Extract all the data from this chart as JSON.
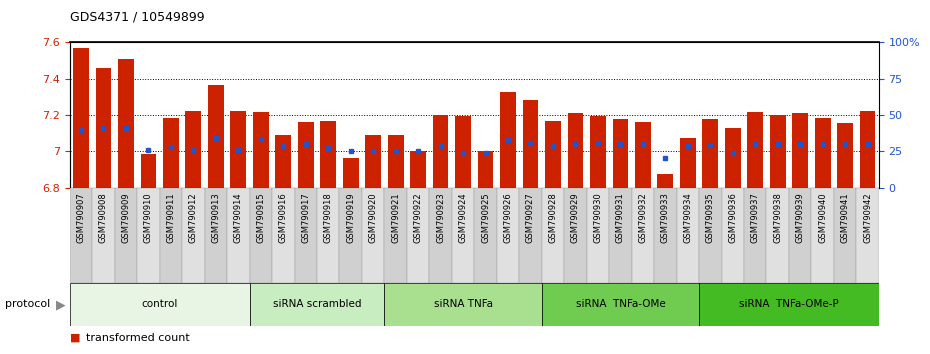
{
  "title": "GDS4371 / 10549899",
  "samples": [
    "GSM790907",
    "GSM790908",
    "GSM790909",
    "GSM790910",
    "GSM790911",
    "GSM790912",
    "GSM790913",
    "GSM790914",
    "GSM790915",
    "GSM790916",
    "GSM790917",
    "GSM790918",
    "GSM790919",
    "GSM790920",
    "GSM790921",
    "GSM790922",
    "GSM790923",
    "GSM790924",
    "GSM790925",
    "GSM790926",
    "GSM790927",
    "GSM790928",
    "GSM790929",
    "GSM790930",
    "GSM790931",
    "GSM790932",
    "GSM790933",
    "GSM790934",
    "GSM790935",
    "GSM790936",
    "GSM790937",
    "GSM790938",
    "GSM790939",
    "GSM790940",
    "GSM790941",
    "GSM790942"
  ],
  "bar_values": [
    7.57,
    7.46,
    7.51,
    6.985,
    7.185,
    7.225,
    7.365,
    7.225,
    7.215,
    7.09,
    7.16,
    7.165,
    6.965,
    7.09,
    7.09,
    7.0,
    7.2,
    7.195,
    7.0,
    7.325,
    7.285,
    7.165,
    7.21,
    7.195,
    7.18,
    7.16,
    6.875,
    7.075,
    7.18,
    7.13,
    7.215,
    7.2,
    7.21,
    7.185,
    7.155,
    7.225
  ],
  "percentile_values": [
    7.12,
    7.13,
    7.13,
    7.01,
    7.025,
    7.01,
    7.075,
    7.01,
    7.07,
    7.03,
    7.04,
    7.02,
    7.0,
    7.0,
    7.0,
    7.0,
    7.03,
    6.99,
    6.99,
    7.06,
    7.045,
    7.03,
    7.04,
    7.045,
    7.04,
    7.04,
    6.965,
    7.03,
    7.035,
    6.99,
    7.04,
    7.04,
    7.04,
    7.04,
    7.04,
    7.04
  ],
  "groups": [
    {
      "label": "control",
      "start": 0,
      "end": 8,
      "color": "#e8f5e4"
    },
    {
      "label": "siRNA scrambled",
      "start": 8,
      "end": 14,
      "color": "#c8edc0"
    },
    {
      "label": "siRNA TNFa",
      "start": 14,
      "end": 21,
      "color": "#a8e090"
    },
    {
      "label": "siRNA  TNFa-OMe",
      "start": 21,
      "end": 28,
      "color": "#70cc50"
    },
    {
      "label": "siRNA  TNFa-OMe-P",
      "start": 28,
      "end": 36,
      "color": "#44bb22"
    }
  ],
  "ymin": 6.8,
  "ymax": 7.6,
  "yticks": [
    6.8,
    7.0,
    7.2,
    7.4,
    7.6
  ],
  "ytick_labels": [
    "6.8",
    "7",
    "7.2",
    "7.4",
    "7.6"
  ],
  "right_yticks": [
    0,
    25,
    50,
    75,
    100
  ],
  "right_ytick_labels": [
    "0",
    "25",
    "50",
    "75",
    "100%"
  ],
  "bar_color": "#cc2200",
  "dot_color": "#2255cc",
  "background_color": "#ffffff",
  "ylabel_left_color": "#cc2200",
  "ylabel_right_color": "#2255cc",
  "tick_bg_even": "#d0d0d0",
  "tick_bg_odd": "#e0e0e0"
}
